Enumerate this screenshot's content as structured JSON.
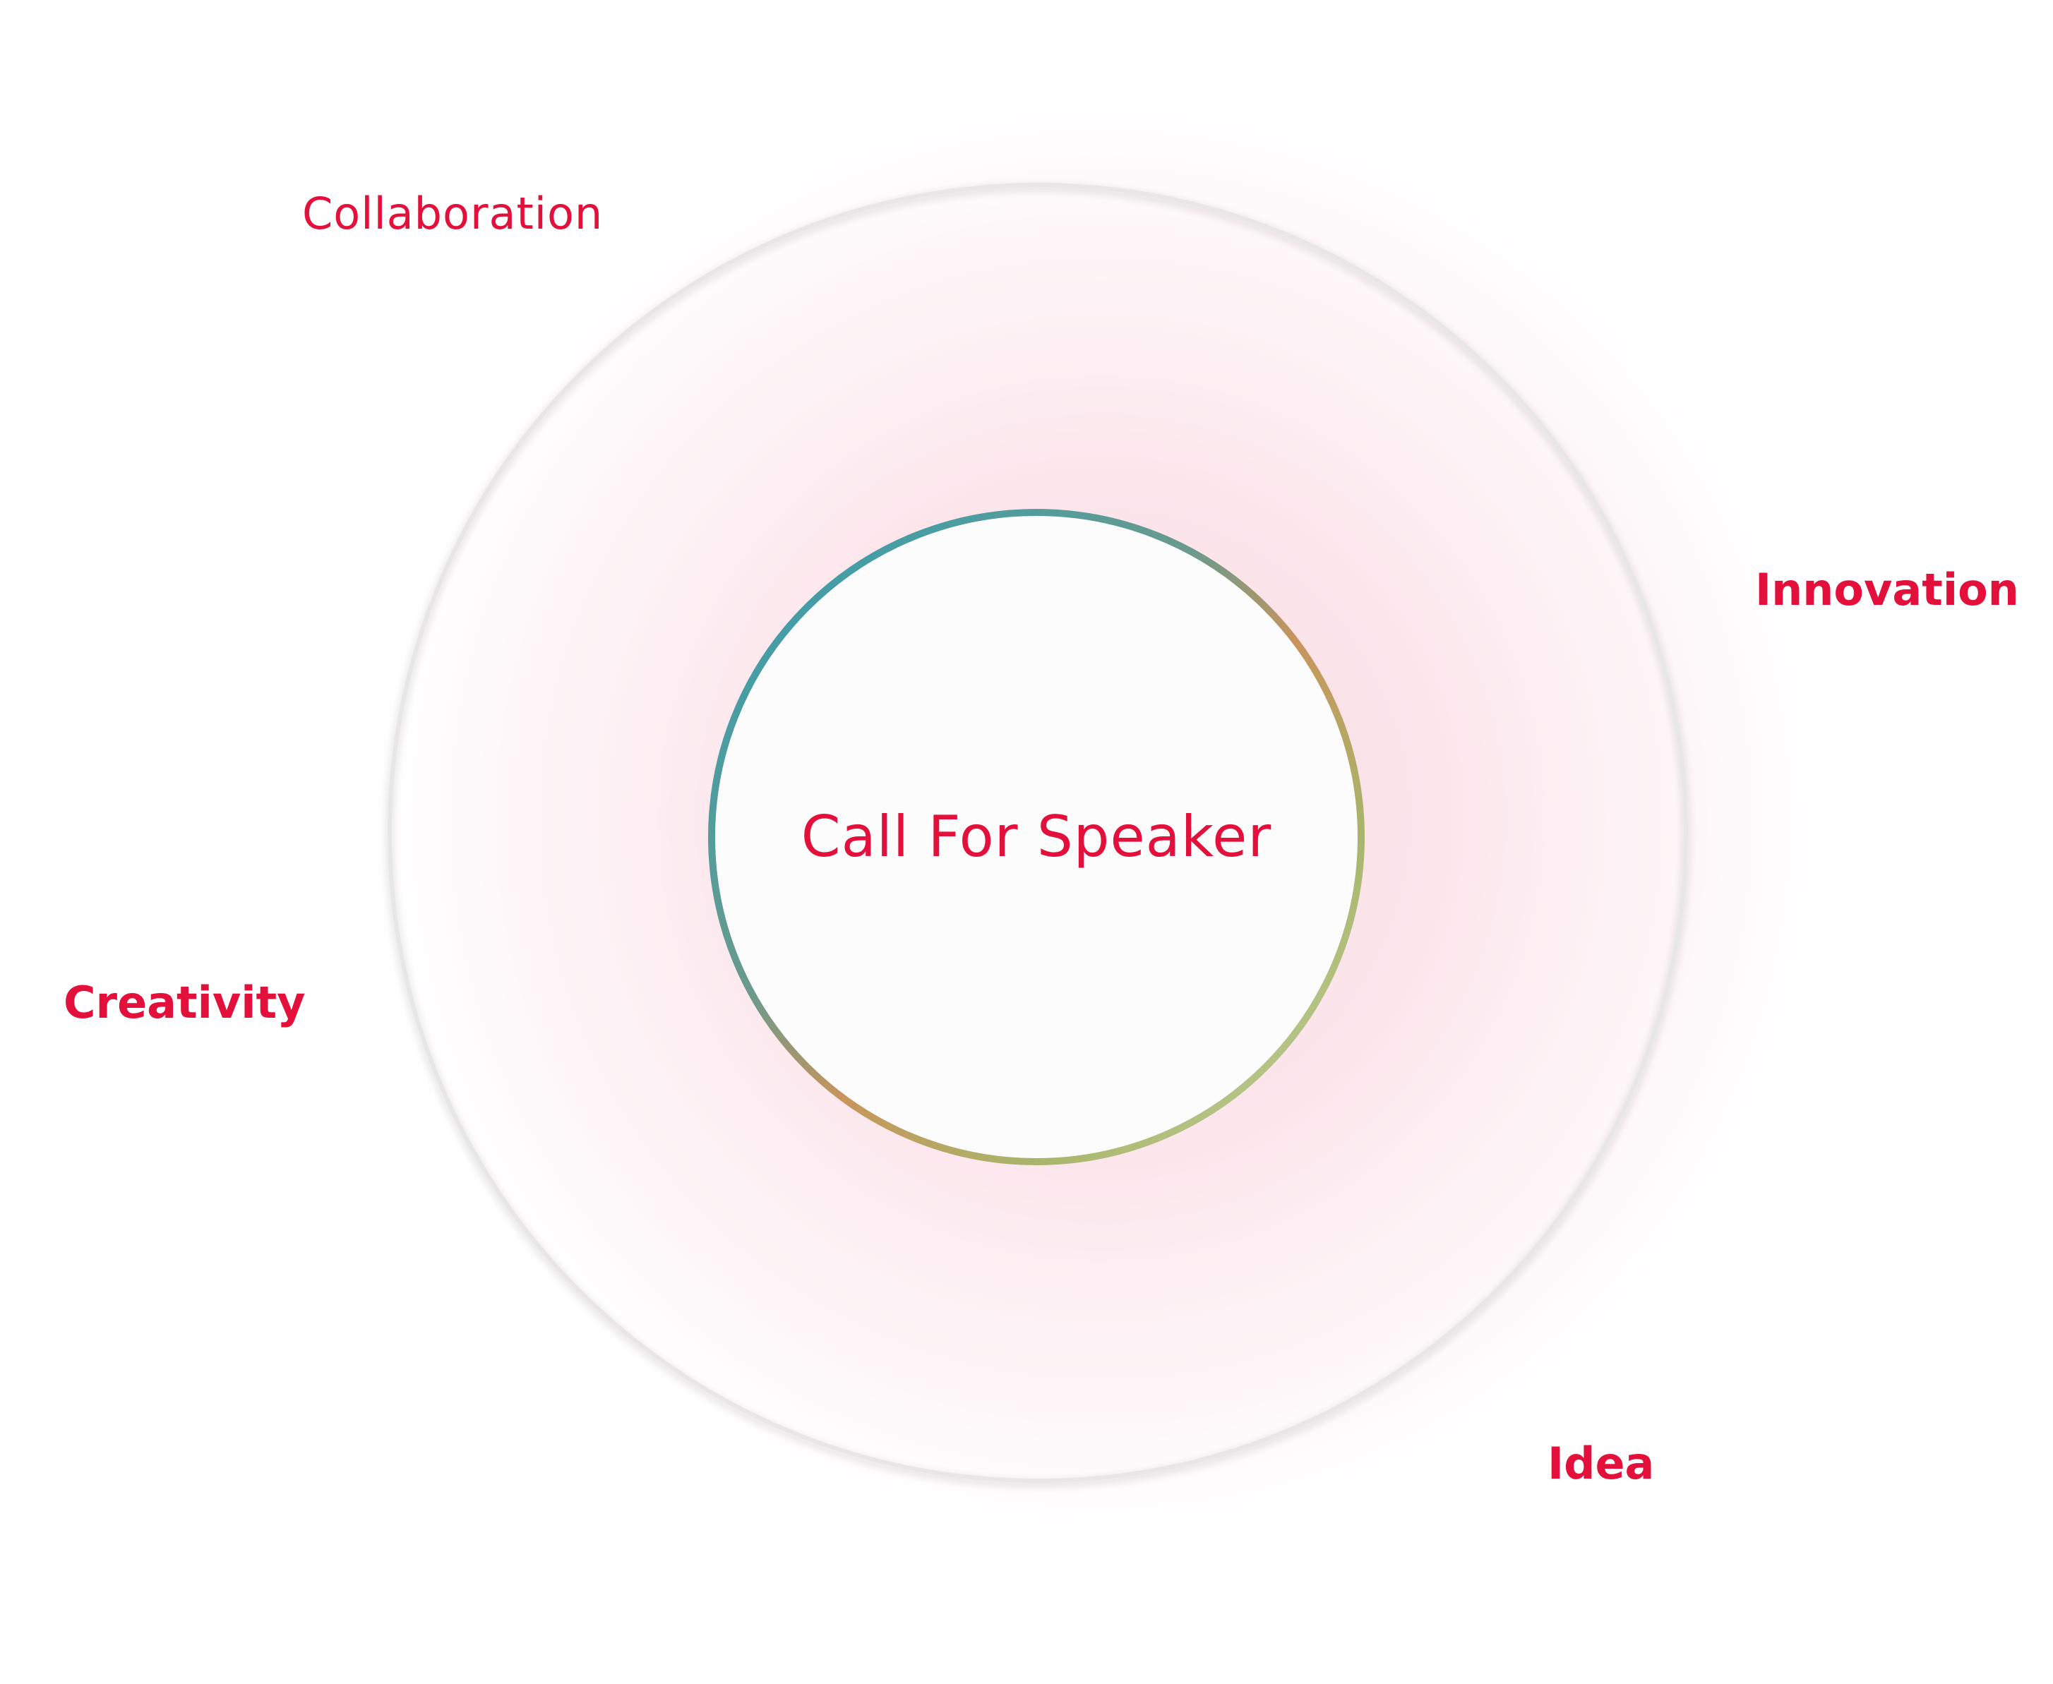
{
  "center": {
    "title": "Call For Speaker"
  },
  "nodes": [
    {
      "label": "Collaboration"
    },
    {
      "label": "Innovation"
    },
    {
      "label": "Creativity"
    },
    {
      "label": "Idea"
    }
  ],
  "colors": {
    "label": "#e2103a",
    "glow": "#f7c6d3",
    "ring_start": "#2f9fb4",
    "ring_mid": "#c9945c",
    "ring_end": "#a8b56a"
  }
}
